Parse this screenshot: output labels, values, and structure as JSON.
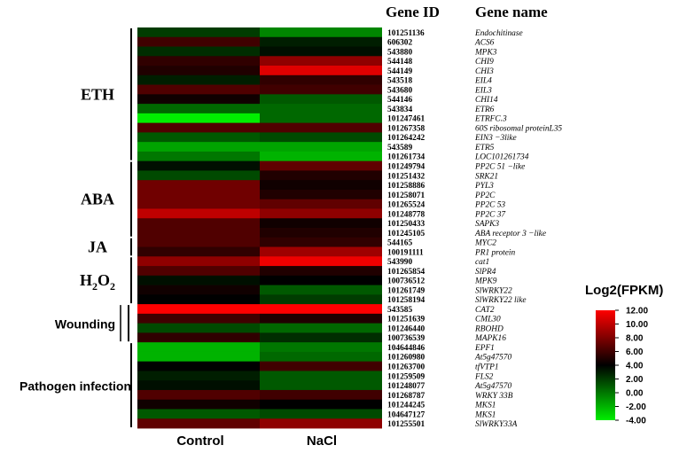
{
  "chart_data": {
    "type": "heatmap",
    "columns": [
      "Control",
      "NaCl"
    ],
    "header_gene_id": "Gene ID",
    "header_gene_name": "Gene name",
    "rows": [
      {
        "id": "101251136",
        "name": "Endochitinase",
        "values": [
          2.0,
          -0.5
        ]
      },
      {
        "id": "606302",
        "name": "ACS6",
        "values": [
          6.0,
          3.0
        ]
      },
      {
        "id": "543880",
        "name": "MPK3",
        "values": [
          2.5,
          3.5
        ]
      },
      {
        "id": "544148",
        "name": "CHI9",
        "values": [
          5.5,
          8.5
        ]
      },
      {
        "id": "544149",
        "name": "CHI3",
        "values": [
          5.0,
          11.0
        ]
      },
      {
        "id": "543518",
        "name": "EIL4",
        "values": [
          3.0,
          5.5
        ]
      },
      {
        "id": "543680",
        "name": "EIL3",
        "values": [
          6.5,
          6.0
        ]
      },
      {
        "id": "544146",
        "name": "CHI14",
        "values": [
          4.5,
          1.0
        ]
      },
      {
        "id": "543834",
        "name": "ETR6",
        "values": [
          0.5,
          0.5
        ]
      },
      {
        "id": "101247461",
        "name": "ETRFC.3",
        "values": [
          -4.0,
          0.5
        ]
      },
      {
        "id": "101267358",
        "name": "60S ribosomal proteinL35",
        "values": [
          6.5,
          6.5
        ]
      },
      {
        "id": "101264242",
        "name": "EIN3 −3like",
        "values": [
          1.0,
          1.5
        ]
      },
      {
        "id": "543589",
        "name": "ETR5",
        "values": [
          -1.5,
          -1.5
        ]
      },
      {
        "id": "101261734",
        "name": "LOC101261734",
        "values": [
          0.0,
          -2.0
        ]
      },
      {
        "id": "101249794",
        "name": "PP2C 51 −like",
        "values": [
          3.5,
          7.0
        ]
      },
      {
        "id": "101251432",
        "name": "SRK21",
        "values": [
          1.5,
          5.0
        ]
      },
      {
        "id": "101258886",
        "name": "PYL3",
        "values": [
          7.5,
          4.5
        ]
      },
      {
        "id": "101258071",
        "name": "PP2C",
        "values": [
          7.5,
          5.0
        ]
      },
      {
        "id": "101265524",
        "name": "PP2C 53",
        "values": [
          7.5,
          7.0
        ]
      },
      {
        "id": "101248778",
        "name": "PP2C 37",
        "values": [
          10.0,
          8.5
        ]
      },
      {
        "id": "101250433",
        "name": "SAPK3",
        "values": [
          6.5,
          4.5
        ]
      },
      {
        "id": "101245105",
        "name": "ABA receptor 3 −like",
        "values": [
          6.5,
          5.0
        ]
      },
      {
        "id": "544165",
        "name": "MYC2",
        "values": [
          6.5,
          5.5
        ]
      },
      {
        "id": "100191111",
        "name": "PR1 protein",
        "values": [
          5.5,
          9.0
        ]
      },
      {
        "id": "543990",
        "name": "cat1",
        "values": [
          8.5,
          11.5
        ]
      },
      {
        "id": "101265854",
        "name": "SlPR4",
        "values": [
          6.5,
          5.0
        ]
      },
      {
        "id": "100736512",
        "name": "MPK9",
        "values": [
          3.5,
          4.0
        ]
      },
      {
        "id": "101261749",
        "name": "SlWRKY22",
        "values": [
          4.5,
          1.0
        ]
      },
      {
        "id": "101258194",
        "name": "SlWRKY22 like",
        "values": [
          4.0,
          2.0
        ]
      },
      {
        "id": "543585",
        "name": "CAT2",
        "values": [
          12.0,
          12.0
        ]
      },
      {
        "id": "101251639",
        "name": "CML30",
        "values": [
          6.0,
          5.0
        ]
      },
      {
        "id": "101246440",
        "name": "RBOHD",
        "values": [
          1.5,
          0.5
        ]
      },
      {
        "id": "100736539",
        "name": "MAPK16",
        "values": [
          5.5,
          2.5
        ]
      },
      {
        "id": "104644846",
        "name": "EPF1",
        "values": [
          -2.0,
          0.0
        ]
      },
      {
        "id": "101260980",
        "name": "At5g47570",
        "values": [
          -2.0,
          0.5
        ]
      },
      {
        "id": "101263700",
        "name": "tfVTP1",
        "values": [
          4.0,
          6.0
        ]
      },
      {
        "id": "101259509",
        "name": "FLS2",
        "values": [
          3.0,
          1.0
        ]
      },
      {
        "id": "101248077",
        "name": "At5g47570",
        "values": [
          3.5,
          1.0
        ]
      },
      {
        "id": "101268787",
        "name": "WRKY 33B",
        "values": [
          6.5,
          6.0
        ]
      },
      {
        "id": "101244245",
        "name": "MKS1",
        "values": [
          4.5,
          4.0
        ]
      },
      {
        "id": "104647127",
        "name": "MKS1",
        "values": [
          1.0,
          1.5
        ]
      },
      {
        "id": "101255501",
        "name": "SlWRKY33A",
        "values": [
          7.0,
          8.5
        ]
      }
    ],
    "groups": [
      {
        "label": "ETH",
        "rows": [
          0,
          13
        ]
      },
      {
        "label": "ABA",
        "rows": [
          14,
          21
        ]
      },
      {
        "label": "JA",
        "rows": [
          22,
          23
        ]
      },
      {
        "label": "H2O2",
        "rows": [
          24,
          28
        ]
      },
      {
        "label": "Wounding",
        "rows": [
          29,
          32
        ]
      },
      {
        "label": "Pathogen infection",
        "rows": [
          33,
          41
        ]
      }
    ],
    "legend": {
      "title": "Log2(FPKM)",
      "min": -4.0,
      "max": 12.0,
      "ticks": [
        "12.00",
        "10.00",
        "8.00",
        "6.00",
        "4.00",
        "2.00",
        "0.00",
        "-2.00",
        "-4.00"
      ],
      "colors": {
        "low": "#00ee00",
        "mid": "#000000",
        "high": "#ff0000"
      },
      "midpoint": 4.0
    }
  }
}
